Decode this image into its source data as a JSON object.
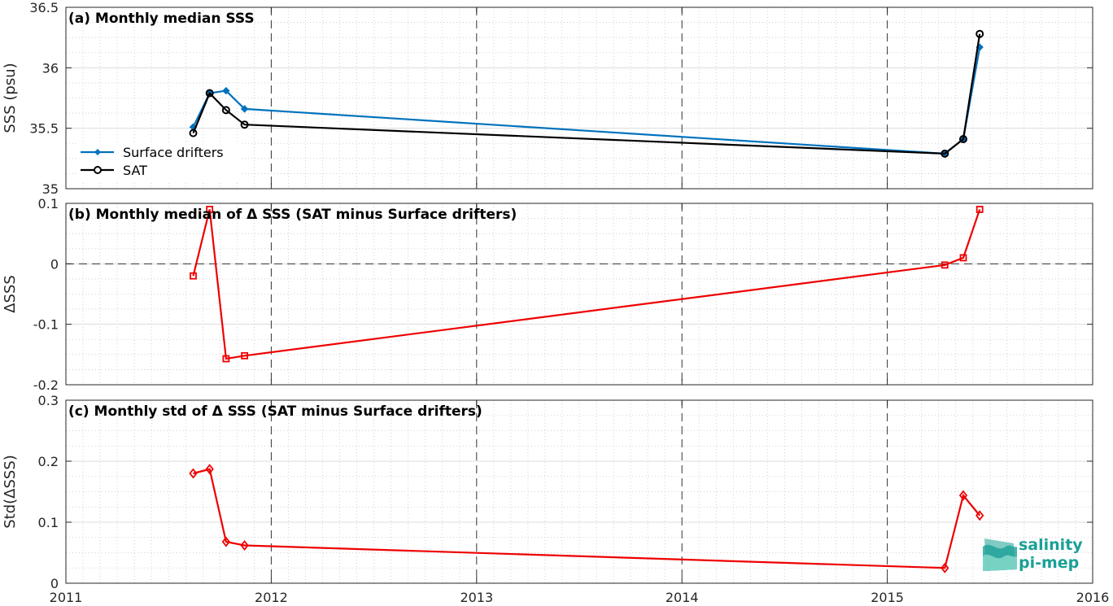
{
  "chart_data": [
    {
      "type": "line",
      "title": "(a) Monthly median SSS",
      "ylabel": "SSS (psu)",
      "ylim": [
        35,
        36.5
      ],
      "yticks": [
        35,
        35.5,
        36,
        36.5
      ],
      "ytick_labels": [
        "35",
        "35.5",
        "36",
        "36.5"
      ],
      "xlim": [
        2011,
        2016
      ],
      "grid": true,
      "legend_position": "left",
      "series": [
        {
          "name": "Surface drifters",
          "color": "#0072bd",
          "marker": "filled-diamond",
          "x": [
            2011.62,
            2011.7,
            2011.78,
            2011.87,
            2015.28,
            2015.37,
            2015.45
          ],
          "y": [
            35.51,
            35.79,
            35.81,
            35.66,
            35.29,
            35.41,
            36.17
          ]
        },
        {
          "name": "SAT",
          "color": "#000000",
          "marker": "open-circle",
          "x": [
            2011.62,
            2011.7,
            2011.78,
            2011.87,
            2015.28,
            2015.37,
            2015.45
          ],
          "y": [
            35.46,
            35.79,
            35.65,
            35.53,
            35.29,
            35.41,
            36.28
          ]
        }
      ]
    },
    {
      "type": "line",
      "title": "(b) Monthly median of Δ SSS (SAT minus Surface drifters)",
      "ylabel": "ΔSSS",
      "ylim": [
        -0.2,
        0.1
      ],
      "yticks": [
        -0.2,
        -0.1,
        0,
        0.1
      ],
      "ytick_labels": [
        "-0.2",
        "-0.1",
        "0",
        "0.1"
      ],
      "xlim": [
        2011,
        2016
      ],
      "grid": true,
      "zero_line": true,
      "series": [
        {
          "color": "#ee0000",
          "marker": "open-square",
          "x": [
            2011.62,
            2011.7,
            2011.78,
            2011.87,
            2015.28,
            2015.37,
            2015.45
          ],
          "y": [
            -0.02,
            0.09,
            -0.157,
            -0.152,
            -0.002,
            0.01,
            0.09
          ]
        }
      ]
    },
    {
      "type": "line",
      "title": "(c) Monthly std of Δ SSS (SAT minus Surface drifters)",
      "ylabel": "Std(ΔSSS)",
      "ylim": [
        0,
        0.3
      ],
      "yticks": [
        0,
        0.1,
        0.2,
        0.3
      ],
      "ytick_labels": [
        "0",
        "0.1",
        "0.2",
        "0.3"
      ],
      "xlim": [
        2011,
        2016
      ],
      "xticks": [
        2011,
        2012,
        2013,
        2014,
        2015,
        2016
      ],
      "xtick_labels": [
        "2011",
        "2012",
        "2013",
        "2014",
        "2015",
        "2016"
      ],
      "grid": true,
      "series": [
        {
          "color": "#ee0000",
          "marker": "open-diamond",
          "x": [
            2011.62,
            2011.7,
            2011.78,
            2011.87,
            2015.28,
            2015.37,
            2015.45
          ],
          "y": [
            0.18,
            0.187,
            0.068,
            0.062,
            0.025,
            0.144,
            0.111
          ]
        }
      ]
    }
  ],
  "logo": {
    "line1": "salinity",
    "line2": "pi-mep",
    "color": "#1aa095"
  }
}
